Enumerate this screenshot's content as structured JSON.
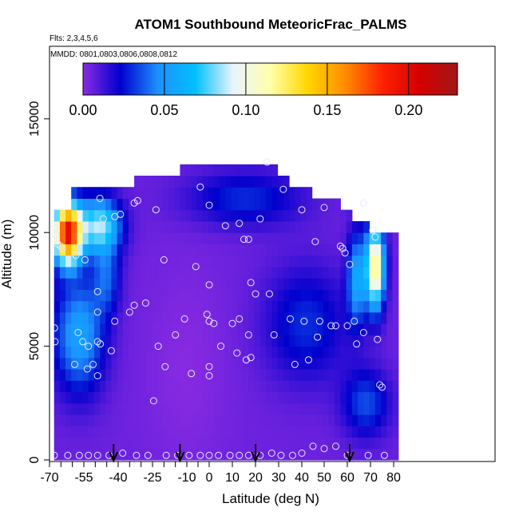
{
  "chart_data": {
    "type": "heatmap",
    "title": "ATOM1 Southbound MeteoricFrac_PALMS",
    "flights_note": "Flts: 2,3,4,5,6",
    "dates_note": "MMDD: 0801,0803,0806,0808,0812",
    "xlabel": "Latitude (deg N)",
    "ylabel": "Altitude (m)",
    "xlim": [
      -70,
      85
    ],
    "ylim": [
      0,
      18000
    ],
    "x_ticks": [
      -70,
      -55,
      -40,
      -25,
      -10,
      0,
      10,
      20,
      30,
      40,
      50,
      60,
      70,
      80
    ],
    "x_tick_labels": [
      "-70",
      "-55",
      "-40",
      "-25",
      "-10",
      "0",
      "10",
      "20",
      "30",
      "40",
      "50",
      "60",
      "70",
      "80"
    ],
    "x_minor_ticks": [
      -65,
      -60,
      -50,
      -45,
      -35,
      -30,
      -20,
      -15,
      -5
    ],
    "y_ticks": [
      0,
      5000,
      10000,
      15000
    ],
    "y_tick_labels": [
      "0",
      "5000",
      "10000",
      "15000"
    ],
    "colorbar": {
      "range": [
        0,
        0.23
      ],
      "ticks": [
        0.0,
        0.05,
        0.1,
        0.15,
        0.2
      ],
      "tick_labels": [
        "0.00",
        "0.05",
        "0.10",
        "0.15",
        "0.20"
      ],
      "colors": [
        "#8a2be2",
        "#0000cd",
        "#1e90ff",
        "#00bfff",
        "#e8f4ff",
        "#ffffaa",
        "#ffd700",
        "#ff8c00",
        "#ff2000",
        "#d40000",
        "#a01818"
      ],
      "placement": "top-inside"
    },
    "grid": false,
    "field_resolution": {
      "dx_deg": 2.5,
      "dz_m": 500
    },
    "field_regions": [
      {
        "name": "south-upper-enhanced",
        "lat": [
          -68,
          -40
        ],
        "alt": [
          8500,
          11500
        ],
        "value": 0.19
      },
      {
        "name": "south-mid-blue",
        "lat": [
          -68,
          -45
        ],
        "alt": [
          2500,
          8500
        ],
        "value": 0.05
      },
      {
        "name": "south-upper-cyan",
        "lat": [
          -45,
          -25
        ],
        "alt": [
          9000,
          11500
        ],
        "value": 0.1
      },
      {
        "name": "south-tropics-violet",
        "lat": [
          -40,
          20
        ],
        "alt": [
          0,
          10000
        ],
        "value": 0.005
      },
      {
        "name": "upper-tropics-blue",
        "lat": [
          -20,
          40
        ],
        "alt": [
          10000,
          13000
        ],
        "value": 0.03
      },
      {
        "name": "north-mid-navy",
        "lat": [
          20,
          65
        ],
        "alt": [
          3000,
          9000
        ],
        "value": 0.025
      },
      {
        "name": "north-upper-enhanced",
        "lat": [
          62,
          75
        ],
        "alt": [
          5000,
          10000
        ],
        "value": 0.13
      },
      {
        "name": "north-lower-navy",
        "lat": [
          55,
          80
        ],
        "alt": [
          1000,
          4500
        ],
        "value": 0.03
      }
    ],
    "series": [
      {
        "name": "samples",
        "points": [
          [
            -67.5,
            10200
          ],
          [
            -67.2,
            9900
          ],
          [
            -66.5,
            9500
          ],
          [
            -65.2,
            9400
          ],
          [
            -64.5,
            9300
          ],
          [
            -67.8,
            5800
          ],
          [
            -67.6,
            5200
          ],
          [
            -67.9,
            200
          ],
          [
            -58.5,
            9000
          ],
          [
            -54.5,
            8800
          ],
          [
            -57.5,
            5600
          ],
          [
            -55.5,
            5200
          ],
          [
            -59,
            4200
          ],
          [
            -53,
            5000
          ],
          [
            -53.5,
            4000
          ],
          [
            -51,
            4200
          ],
          [
            -49,
            3700
          ],
          [
            -49,
            5200
          ],
          [
            -47.8,
            5100
          ],
          [
            -43,
            4800
          ],
          [
            -41.5,
            6100
          ],
          [
            -49,
            6500
          ],
          [
            -49,
            7400
          ],
          [
            -46.5,
            10600
          ],
          [
            -41.5,
            10700
          ],
          [
            -39,
            10800
          ],
          [
            -48,
            11500
          ],
          [
            -35,
            6500
          ],
          [
            -33,
            6800
          ],
          [
            -28,
            6900
          ],
          [
            -22.5,
            5000
          ],
          [
            -24.5,
            2600
          ],
          [
            -33,
            11300
          ],
          [
            -31.5,
            11400
          ],
          [
            -23.5,
            11000
          ],
          [
            -20,
            8800
          ],
          [
            -19.5,
            4100
          ],
          [
            -15,
            5500
          ],
          [
            -11,
            6200
          ],
          [
            -8,
            3800
          ],
          [
            -6,
            8500
          ],
          [
            -4,
            12000
          ],
          [
            -1,
            6400
          ],
          [
            0,
            6100
          ],
          [
            2,
            6000
          ],
          [
            0,
            4100
          ],
          [
            0,
            3700
          ],
          [
            0,
            7700
          ],
          [
            0,
            11200
          ],
          [
            5,
            5000
          ],
          [
            7,
            10300
          ],
          [
            10,
            6000
          ],
          [
            12,
            4700
          ],
          [
            13,
            6200
          ],
          [
            13,
            10400
          ],
          [
            15,
            9700
          ],
          [
            16,
            4400
          ],
          [
            17,
            5500
          ],
          [
            18,
            4500
          ],
          [
            18,
            7800
          ],
          [
            17,
            9700
          ],
          [
            20,
            7300
          ],
          [
            22,
            10600
          ],
          [
            25,
            13100
          ],
          [
            26,
            7300
          ],
          [
            28,
            5500
          ],
          [
            32,
            11900
          ],
          [
            35,
            6200
          ],
          [
            37,
            4200
          ],
          [
            40,
            11000
          ],
          [
            41,
            6100
          ],
          [
            43,
            4400
          ],
          [
            46,
            9600
          ],
          [
            47,
            5400
          ],
          [
            48,
            6100
          ],
          [
            50,
            11100
          ],
          [
            53,
            5900
          ],
          [
            55,
            5900
          ],
          [
            57,
            9400
          ],
          [
            58,
            9300
          ],
          [
            59,
            9100
          ],
          [
            60,
            5900
          ],
          [
            61,
            8600
          ],
          [
            63,
            6100
          ],
          [
            64,
            5100
          ],
          [
            67,
            11300
          ],
          [
            67,
            5600
          ],
          [
            71,
            10100
          ],
          [
            72,
            9800
          ],
          [
            73,
            5300
          ],
          [
            74,
            3300
          ],
          [
            75,
            3200
          ],
          [
            -62,
            200
          ],
          [
            -57,
            200
          ],
          [
            -53,
            200
          ],
          [
            -49,
            200
          ],
          [
            -44,
            200
          ],
          [
            -38,
            300
          ],
          [
            -32,
            200
          ],
          [
            -27,
            200
          ],
          [
            -19,
            200
          ],
          [
            -14,
            200
          ],
          [
            -9,
            200
          ],
          [
            -4,
            200
          ],
          [
            0,
            200
          ],
          [
            4,
            200
          ],
          [
            9,
            200
          ],
          [
            13,
            200
          ],
          [
            17,
            200
          ],
          [
            22,
            200
          ],
          [
            27,
            300
          ],
          [
            31,
            200
          ],
          [
            36,
            200
          ],
          [
            40,
            300
          ],
          [
            45,
            600
          ],
          [
            50,
            500
          ],
          [
            55,
            600
          ],
          [
            60,
            200
          ],
          [
            69,
            200
          ],
          [
            76,
            200
          ]
        ]
      },
      {
        "name": "flight-markers",
        "points": [
          [
            -42,
            600
          ],
          [
            -13,
            600
          ],
          [
            20,
            600
          ],
          [
            61,
            600
          ]
        ]
      }
    ]
  }
}
